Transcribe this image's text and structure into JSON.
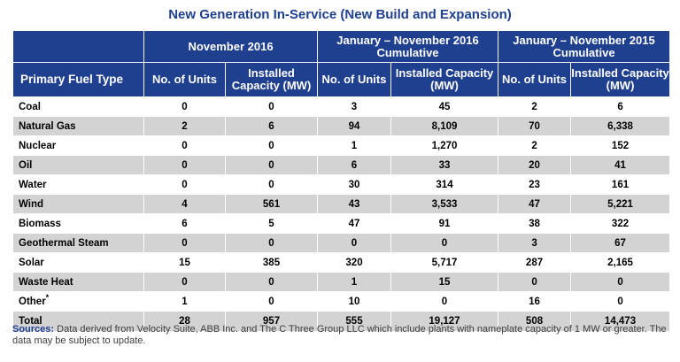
{
  "title": "New Generation In-Service (New Build and Expansion)",
  "groups": [
    "November 2016",
    "January – November 2016 Cumulative",
    "January – November 2015 Cumulative"
  ],
  "fuel_header": "Primary Fuel Type",
  "units_header": "No. of Units",
  "capacity_header": "Installed Capacity (MW)",
  "rows": [
    {
      "fuel": "Coal",
      "m_units": "0",
      "m_cap": "0",
      "c16_units": "3",
      "c16_cap": "45",
      "c15_units": "2",
      "c15_cap": "6"
    },
    {
      "fuel": "Natural Gas",
      "m_units": "2",
      "m_cap": "6",
      "c16_units": "94",
      "c16_cap": "8,109",
      "c15_units": "70",
      "c15_cap": "6,338"
    },
    {
      "fuel": "Nuclear",
      "m_units": "0",
      "m_cap": "0",
      "c16_units": "1",
      "c16_cap": "1,270",
      "c15_units": "2",
      "c15_cap": "152"
    },
    {
      "fuel": "Oil",
      "m_units": "0",
      "m_cap": "0",
      "c16_units": "6",
      "c16_cap": "33",
      "c15_units": "20",
      "c15_cap": "41"
    },
    {
      "fuel": "Water",
      "m_units": "0",
      "m_cap": "0",
      "c16_units": "30",
      "c16_cap": "314",
      "c15_units": "23",
      "c15_cap": "161"
    },
    {
      "fuel": "Wind",
      "m_units": "4",
      "m_cap": "561",
      "c16_units": "43",
      "c16_cap": "3,533",
      "c15_units": "47",
      "c15_cap": "5,221"
    },
    {
      "fuel": "Biomass",
      "m_units": "6",
      "m_cap": "5",
      "c16_units": "47",
      "c16_cap": "91",
      "c15_units": "38",
      "c15_cap": "322"
    },
    {
      "fuel": "Geothermal Steam",
      "m_units": "0",
      "m_cap": "0",
      "c16_units": "0",
      "c16_cap": "0",
      "c15_units": "3",
      "c15_cap": "67"
    },
    {
      "fuel": "Solar",
      "m_units": "15",
      "m_cap": "385",
      "c16_units": "320",
      "c16_cap": "5,717",
      "c15_units": "287",
      "c15_cap": "2,165"
    },
    {
      "fuel": "Waste Heat",
      "m_units": "0",
      "m_cap": "0",
      "c16_units": "1",
      "c16_cap": "15",
      "c15_units": "0",
      "c15_cap": "0"
    },
    {
      "fuel": "Other",
      "fuel_mark": "*",
      "m_units": "1",
      "m_cap": "0",
      "c16_units": "10",
      "c16_cap": "0",
      "c15_units": "16",
      "c15_cap": "0"
    },
    {
      "fuel": "Total",
      "m_units": "28",
      "m_cap": "957",
      "c16_units": "555",
      "c16_cap": "19,127",
      "c15_units": "508",
      "c15_cap": "14,473"
    }
  ],
  "sources_label": "Sources:",
  "sources_text": "Data derived from Velocity Suite, ABB Inc. and The C Three Group LLC which include plants with nameplate capacity of 1 MW or greater.  The data may be subject to update.",
  "colors": {
    "header_bg": "#1f3f8f",
    "title": "#1f3f8f",
    "stripe": "#d3d3d3"
  }
}
